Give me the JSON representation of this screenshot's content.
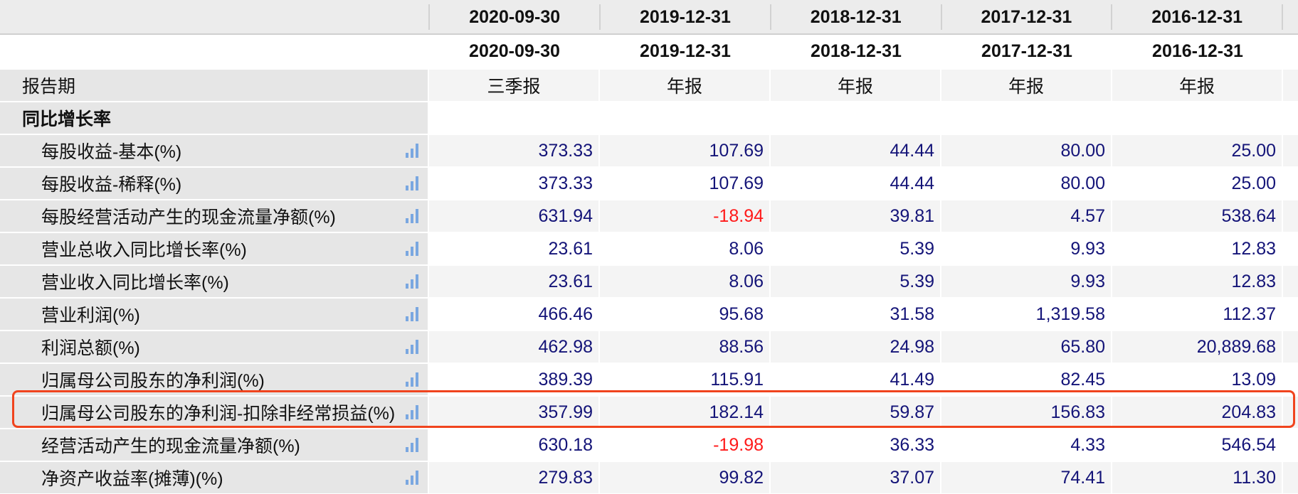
{
  "header_dates_top": [
    "2020-09-30",
    "2019-12-31",
    "2018-12-31",
    "2017-12-31",
    "2016-12-31"
  ],
  "header_dates": [
    "2020-09-30",
    "2019-12-31",
    "2018-12-31",
    "2017-12-31",
    "2016-12-31"
  ],
  "period_row": {
    "label": "报告期",
    "values": [
      "三季报",
      "年报",
      "年报",
      "年报",
      "年报"
    ]
  },
  "section_title": "同比增长率",
  "icon": "bar-chart-icon",
  "colors": {
    "value": "#141478",
    "negative": "#ff1a1a",
    "highlight": "#f0441e"
  },
  "highlighted_row": "归属母公司股东的净利润-扣除非经常损益(%)",
  "rows": [
    {
      "label": "每股收益-基本(%)",
      "values": [
        "373.33",
        "107.69",
        "44.44",
        "80.00",
        "25.00"
      ]
    },
    {
      "label": "每股收益-稀释(%)",
      "values": [
        "373.33",
        "107.69",
        "44.44",
        "80.00",
        "25.00"
      ]
    },
    {
      "label": "每股经营活动产生的现金流量净额(%)",
      "values": [
        "631.94",
        "-18.94",
        "39.81",
        "4.57",
        "538.64"
      ]
    },
    {
      "label": "营业总收入同比增长率(%)",
      "values": [
        "23.61",
        "8.06",
        "5.39",
        "9.93",
        "12.83"
      ]
    },
    {
      "label": "营业收入同比增长率(%)",
      "values": [
        "23.61",
        "8.06",
        "5.39",
        "9.93",
        "12.83"
      ]
    },
    {
      "label": "营业利润(%)",
      "values": [
        "466.46",
        "95.68",
        "31.58",
        "1,319.58",
        "112.37"
      ]
    },
    {
      "label": "利润总额(%)",
      "values": [
        "462.98",
        "88.56",
        "24.98",
        "65.80",
        "20,889.68"
      ]
    },
    {
      "label": "归属母公司股东的净利润(%)",
      "values": [
        "389.39",
        "115.91",
        "41.49",
        "82.45",
        "13.09"
      ]
    },
    {
      "label": "归属母公司股东的净利润-扣除非经常损益(%)",
      "values": [
        "357.99",
        "182.14",
        "59.87",
        "156.83",
        "204.83"
      ]
    },
    {
      "label": "经营活动产生的现金流量净额(%)",
      "values": [
        "630.18",
        "-19.98",
        "36.33",
        "4.33",
        "546.54"
      ]
    },
    {
      "label": "净资产收益率(摊薄)(%)",
      "values": [
        "279.83",
        "99.82",
        "37.07",
        "74.41",
        "11.30"
      ]
    }
  ]
}
